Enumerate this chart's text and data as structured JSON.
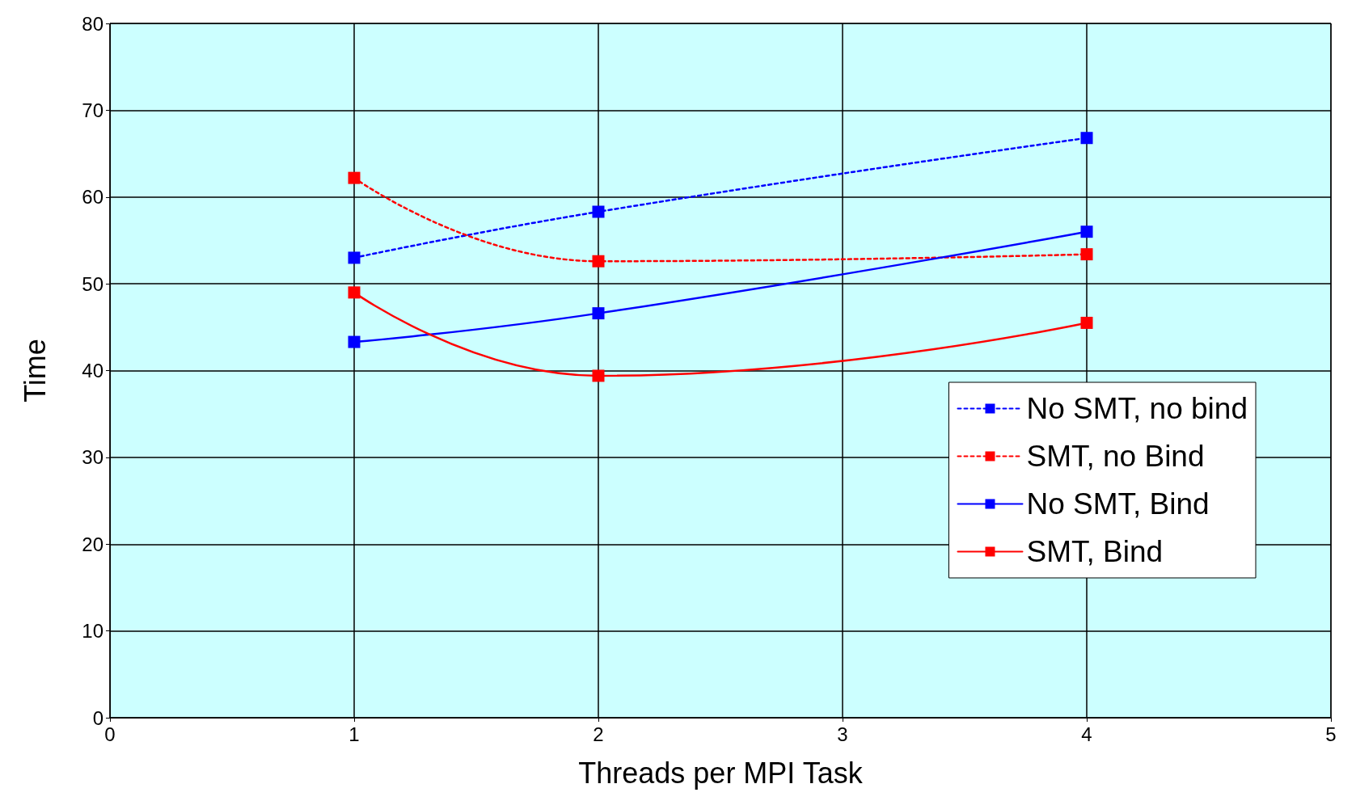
{
  "chart_data": {
    "type": "line",
    "xlabel": "Threads per MPI Task",
    "ylabel": "Time",
    "x": [
      1,
      2,
      4
    ],
    "xlim": [
      0,
      5
    ],
    "xticks": [
      0,
      1,
      2,
      3,
      4,
      5
    ],
    "ylim": [
      0,
      80
    ],
    "yticks": [
      0,
      10,
      20,
      30,
      40,
      50,
      60,
      70,
      80
    ],
    "grid": true,
    "legend": "right",
    "marker": "square",
    "series": [
      {
        "name": "No SMT, no bind",
        "color": "#0000ff",
        "line_style": "dashed",
        "values": [
          53,
          58.3,
          66.8
        ]
      },
      {
        "name": "SMT, no Bind",
        "color": "#ff0000",
        "line_style": "dashed",
        "values": [
          62.2,
          52.6,
          53.4
        ]
      },
      {
        "name": "No SMT, Bind",
        "color": "#0000ff",
        "line_style": "solid",
        "values": [
          43.3,
          46.6,
          56
        ]
      },
      {
        "name": "SMT, Bind",
        "color": "#ff0000",
        "line_style": "solid",
        "values": [
          49,
          39.4,
          45.5
        ]
      }
    ]
  }
}
